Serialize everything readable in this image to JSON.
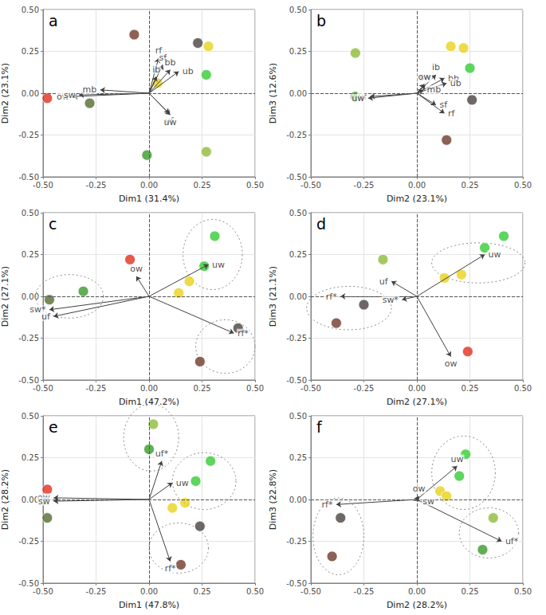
{
  "chart_data": [
    {
      "type": "scatter",
      "title": "a",
      "x_label": "Dim1 (31.4%)",
      "y_label": "Dim2 (23.1%)",
      "xlim": [
        -0.5,
        0.5
      ],
      "ylim": [
        -0.5,
        0.5
      ],
      "xticks": [
        {
          "value": -0.5,
          "label": "-0.50"
        },
        {
          "value": -0.25,
          "label": "-0.25"
        },
        {
          "value": 0,
          "label": "0.00"
        },
        {
          "value": 0.25,
          "label": "0.25"
        },
        {
          "value": 0.5,
          "label": "0.50"
        }
      ],
      "yticks": [
        {
          "value": -0.5,
          "label": "-0.50"
        },
        {
          "value": -0.25,
          "label": "-0.25"
        },
        {
          "value": 0,
          "label": "0.00"
        },
        {
          "value": 0.25,
          "label": "0.25"
        },
        {
          "value": 0.5,
          "label": "0.50"
        }
      ],
      "grid": true,
      "hline": 0,
      "vline": 0,
      "arrows": [
        {
          "name": "ow",
          "x": -0.36,
          "y": -0.02
        },
        {
          "name": "sw",
          "x": -0.33,
          "y": -0.01
        },
        {
          "name": "mb",
          "x": -0.23,
          "y": 0.02
        },
        {
          "name": "rf",
          "x": 0.045,
          "y": 0.21
        },
        {
          "name": "sf",
          "x": 0.065,
          "y": 0.17
        },
        {
          "name": "bb",
          "x": 0.1,
          "y": 0.14
        },
        {
          "name": "ub",
          "x": 0.14,
          "y": 0.13
        },
        {
          "name": "ib",
          "x": 0.035,
          "y": 0.1
        },
        {
          "name": "uf",
          "x": 0.095,
          "y": -0.12
        },
        {
          "name": "uw",
          "x": 0.1,
          "y": -0.13
        }
      ],
      "points": [
        {
          "x": -0.07,
          "y": 0.35,
          "color": "#6e3b2b"
        },
        {
          "x": 0.23,
          "y": 0.3,
          "color": "#4a4340"
        },
        {
          "x": 0.28,
          "y": 0.28,
          "color": "#e8d21d"
        },
        {
          "x": 0.04,
          "y": 0.06,
          "color": "#e8d21d"
        },
        {
          "x": 0.27,
          "y": 0.11,
          "color": "#33cc33"
        },
        {
          "x": -0.28,
          "y": -0.06,
          "color": "#556b2f"
        },
        {
          "x": -0.48,
          "y": -0.03,
          "color": "#e0301e"
        },
        {
          "x": -0.01,
          "y": -0.37,
          "color": "#3a9a2a"
        },
        {
          "x": 0.27,
          "y": -0.35,
          "color": "#8fbc3a"
        }
      ],
      "ellipses": []
    },
    {
      "type": "scatter",
      "title": "b",
      "x_label": "Dim2 (23.1%)",
      "y_label": "Dim3 (12.6%)",
      "xlim": [
        -0.5,
        0.5
      ],
      "ylim": [
        -0.5,
        0.5
      ],
      "xticks": [
        {
          "value": -0.5,
          "label": "-0.50"
        },
        {
          "value": -0.25,
          "label": "-0.25"
        },
        {
          "value": 0,
          "label": "0.00"
        },
        {
          "value": 0.25,
          "label": "0.25"
        },
        {
          "value": 0.5,
          "label": "0.50"
        }
      ],
      "yticks": [
        {
          "value": -0.5,
          "label": "-0.50"
        },
        {
          "value": -0.25,
          "label": "-0.25"
        },
        {
          "value": 0,
          "label": "0.00"
        },
        {
          "value": 0.25,
          "label": "0.25"
        },
        {
          "value": 0.5,
          "label": "0.50"
        }
      ],
      "grid": true,
      "hline": 0,
      "vline": 0,
      "arrows": [
        {
          "name": "ib",
          "x": 0.09,
          "y": 0.11
        },
        {
          "name": "bb",
          "x": 0.13,
          "y": 0.09
        },
        {
          "name": "ub",
          "x": 0.14,
          "y": 0.06
        },
        {
          "name": "sw",
          "x": 0.04,
          "y": 0.05
        },
        {
          "name": "ow",
          "x": 0.035,
          "y": 0.055
        },
        {
          "name": "mb",
          "x": 0.03,
          "y": 0.02
        },
        {
          "name": "uf",
          "x": -0.22,
          "y": -0.02
        },
        {
          "name": "uw",
          "x": -0.23,
          "y": -0.03
        },
        {
          "name": "sf",
          "x": 0.09,
          "y": -0.07
        },
        {
          "name": "rf",
          "x": 0.13,
          "y": -0.12
        }
      ],
      "points": [
        {
          "x": 0.16,
          "y": 0.28,
          "color": "#e8d21d"
        },
        {
          "x": 0.22,
          "y": 0.27,
          "color": "#e8d21d"
        },
        {
          "x": 0.25,
          "y": 0.15,
          "color": "#33cc33"
        },
        {
          "x": 0.26,
          "y": -0.04,
          "color": "#4a4340"
        },
        {
          "x": 0.14,
          "y": -0.28,
          "color": "#6e3b2b"
        },
        {
          "x": -0.29,
          "y": 0.24,
          "color": "#8fbc3a"
        },
        {
          "x": -0.29,
          "y": -0.02,
          "color": "#3a9a2a"
        }
      ],
      "ellipses": []
    },
    {
      "type": "scatter",
      "title": "c",
      "x_label": "Dim1 (47.2%)",
      "y_label": "Dim2 (27.1%)",
      "xlim": [
        -0.5,
        0.5
      ],
      "ylim": [
        -0.5,
        0.5
      ],
      "xticks": [
        {
          "value": -0.5,
          "label": "-0.50"
        },
        {
          "value": -0.25,
          "label": "-0.25"
        },
        {
          "value": 0,
          "label": "0.00"
        },
        {
          "value": 0.25,
          "label": "0.25"
        },
        {
          "value": 0.5,
          "label": "0.50"
        }
      ],
      "yticks": [
        {
          "value": -0.5,
          "label": "-0.50"
        },
        {
          "value": -0.25,
          "label": "-0.25"
        },
        {
          "value": 0,
          "label": "0.00"
        },
        {
          "value": 0.25,
          "label": "0.25"
        },
        {
          "value": 0.5,
          "label": "0.50"
        }
      ],
      "grid": true,
      "hline": 0,
      "vline": 0,
      "arrows": [
        {
          "name": "ow",
          "x": -0.06,
          "y": 0.12
        },
        {
          "name": "sw*",
          "x": -0.47,
          "y": -0.08
        },
        {
          "name": "uf",
          "x": -0.45,
          "y": -0.12
        },
        {
          "name": "uw",
          "x": 0.28,
          "y": 0.19
        },
        {
          "name": "rf*",
          "x": 0.4,
          "y": -0.22
        }
      ],
      "points": [
        {
          "x": -0.09,
          "y": 0.22,
          "color": "#e0301e"
        },
        {
          "x": -0.47,
          "y": -0.02,
          "color": "#556b2f"
        },
        {
          "x": -0.31,
          "y": 0.03,
          "color": "#3a9a2a"
        },
        {
          "x": 0.31,
          "y": 0.36,
          "color": "#33cc33"
        },
        {
          "x": 0.26,
          "y": 0.18,
          "color": "#33cc33"
        },
        {
          "x": 0.19,
          "y": 0.09,
          "color": "#e8d21d"
        },
        {
          "x": 0.14,
          "y": 0.02,
          "color": "#e8d21d"
        },
        {
          "x": 0.42,
          "y": -0.19,
          "color": "#4a4340"
        },
        {
          "x": 0.24,
          "y": -0.39,
          "color": "#6e3b2b"
        }
      ],
      "ellipses": [
        {
          "x": -0.375,
          "y": 0,
          "rx": 0.16,
          "ry": 0.13
        },
        {
          "x": 0.3,
          "y": 0.25,
          "rx": 0.14,
          "ry": 0.21
        },
        {
          "x": 0.36,
          "y": -0.3,
          "rx": 0.14,
          "ry": 0.16
        }
      ]
    },
    {
      "type": "scatter",
      "title": "d",
      "x_label": "Dim2 (27.1%)",
      "y_label": "Dim3 (21.1%)",
      "xlim": [
        -0.5,
        0.5
      ],
      "ylim": [
        -0.5,
        0.5
      ],
      "xticks": [
        {
          "value": -0.5,
          "label": "-0.50"
        },
        {
          "value": -0.25,
          "label": "-0.25"
        },
        {
          "value": 0,
          "label": "0.00"
        },
        {
          "value": 0.25,
          "label": "0.25"
        },
        {
          "value": 0.5,
          "label": "0.50"
        }
      ],
      "yticks": [
        {
          "value": -0.5,
          "label": "-0.50"
        },
        {
          "value": -0.25,
          "label": "-0.25"
        },
        {
          "value": 0,
          "label": "0.00"
        },
        {
          "value": 0.25,
          "label": "0.25"
        },
        {
          "value": 0.5,
          "label": "0.50"
        }
      ],
      "grid": true,
      "hline": 0,
      "vline": 0,
      "arrows": [
        {
          "name": "uf",
          "x": -0.12,
          "y": 0.09
        },
        {
          "name": "rf*",
          "x": -0.36,
          "y": 0.0
        },
        {
          "name": "sw*",
          "x": -0.07,
          "y": -0.02
        },
        {
          "name": "uw",
          "x": 0.32,
          "y": 0.25
        },
        {
          "name": "ow",
          "x": 0.16,
          "y": -0.36
        }
      ],
      "points": [
        {
          "x": -0.16,
          "y": 0.22,
          "color": "#8fbc3a"
        },
        {
          "x": -0.38,
          "y": -0.16,
          "color": "#6e3b2b"
        },
        {
          "x": -0.25,
          "y": -0.05,
          "color": "#4a4340"
        },
        {
          "x": 0.24,
          "y": -0.33,
          "color": "#e0301e"
        },
        {
          "x": 0.41,
          "y": 0.36,
          "color": "#33cc33"
        },
        {
          "x": 0.32,
          "y": 0.29,
          "color": "#33cc33"
        },
        {
          "x": 0.21,
          "y": 0.13,
          "color": "#e8d21d"
        },
        {
          "x": 0.13,
          "y": 0.11,
          "color": "#e8d21d"
        }
      ],
      "ellipses": [
        {
          "x": -0.32,
          "y": -0.07,
          "rx": 0.2,
          "ry": 0.13
        },
        {
          "x": 0.29,
          "y": 0.2,
          "rx": 0.22,
          "ry": 0.12
        }
      ]
    },
    {
      "type": "scatter",
      "title": "e",
      "x_label": "Dim1 (47.8%)",
      "y_label": "Dim2 (28.2%)",
      "xlim": [
        -0.5,
        0.5
      ],
      "ylim": [
        -0.5,
        0.5
      ],
      "xticks": [
        {
          "value": -0.5,
          "label": "-0.50"
        },
        {
          "value": -0.25,
          "label": "-0.25"
        },
        {
          "value": 0,
          "label": "0.00"
        },
        {
          "value": 0.25,
          "label": "0.25"
        },
        {
          "value": 0.5,
          "label": "0.50"
        }
      ],
      "yticks": [
        {
          "value": -0.5,
          "label": "-0.50"
        },
        {
          "value": -0.25,
          "label": "-0.25"
        },
        {
          "value": 0,
          "label": "0.00"
        },
        {
          "value": 0.25,
          "label": "0.25"
        },
        {
          "value": 0.5,
          "label": "0.50"
        }
      ],
      "grid": true,
      "hline": 0,
      "vline": 0,
      "arrows": [
        {
          "name": "ow",
          "x": -0.45,
          "y": 0.01
        },
        {
          "name": "sw",
          "x": -0.45,
          "y": -0.01
        },
        {
          "name": "uf*",
          "x": 0.06,
          "y": 0.23
        },
        {
          "name": "uw",
          "x": 0.11,
          "y": 0.1
        },
        {
          "name": "rf*",
          "x": 0.1,
          "y": -0.37
        }
      ],
      "points": [
        {
          "x": -0.48,
          "y": 0.06,
          "color": "#e0301e"
        },
        {
          "x": -0.48,
          "y": -0.11,
          "color": "#556b2f"
        },
        {
          "x": 0.02,
          "y": 0.45,
          "color": "#8fbc3a"
        },
        {
          "x": 0.0,
          "y": 0.3,
          "color": "#3a9a2a"
        },
        {
          "x": 0.29,
          "y": 0.23,
          "color": "#33cc33"
        },
        {
          "x": 0.22,
          "y": 0.11,
          "color": "#33cc33"
        },
        {
          "x": 0.11,
          "y": -0.05,
          "color": "#e8d21d"
        },
        {
          "x": 0.17,
          "y": -0.02,
          "color": "#e8d21d"
        },
        {
          "x": 0.24,
          "y": -0.16,
          "color": "#4a4340"
        },
        {
          "x": 0.15,
          "y": -0.39,
          "color": "#6e3b2b"
        }
      ],
      "ellipses": [
        {
          "x": 0.01,
          "y": 0.37,
          "rx": 0.13,
          "ry": 0.2
        },
        {
          "x": 0.26,
          "y": 0.11,
          "rx": 0.15,
          "ry": 0.17
        },
        {
          "x": 0.14,
          "y": -0.29,
          "rx": 0.14,
          "ry": 0.15
        }
      ]
    },
    {
      "type": "scatter",
      "title": "f",
      "x_label": "Dim2 (28.2%)",
      "y_label": "Dim3 (22.8%)",
      "xlim": [
        -0.5,
        0.5
      ],
      "ylim": [
        -0.5,
        0.5
      ],
      "xticks": [
        {
          "value": -0.5,
          "label": "-0.50"
        },
        {
          "value": -0.25,
          "label": "-0.25"
        },
        {
          "value": 0,
          "label": "0.00"
        },
        {
          "value": 0.25,
          "label": "0.25"
        },
        {
          "value": 0.5,
          "label": "0.50"
        }
      ],
      "yticks": [
        {
          "value": -0.5,
          "label": "-0.50"
        },
        {
          "value": -0.25,
          "label": "-0.25"
        },
        {
          "value": 0,
          "label": "0.00"
        },
        {
          "value": 0.25,
          "label": "0.25"
        },
        {
          "value": 0.5,
          "label": "0.50"
        }
      ],
      "grid": true,
      "hline": 0,
      "vline": 0,
      "arrows": [
        {
          "name": "uw",
          "x": 0.19,
          "y": 0.2
        },
        {
          "name": "ow",
          "x": 0.01,
          "y": 0.02
        },
        {
          "name": "sw",
          "x": 0.01,
          "y": -0.01
        },
        {
          "name": "rf*",
          "x": -0.38,
          "y": -0.03
        },
        {
          "name": "uf*",
          "x": 0.4,
          "y": -0.25
        }
      ],
      "points": [
        {
          "x": -0.36,
          "y": -0.11,
          "color": "#4a4340"
        },
        {
          "x": -0.4,
          "y": -0.34,
          "color": "#6e3b2b"
        },
        {
          "x": 0.23,
          "y": 0.27,
          "color": "#33cc33"
        },
        {
          "x": 0.2,
          "y": 0.14,
          "color": "#33cc33"
        },
        {
          "x": 0.11,
          "y": 0.05,
          "color": "#e8d21d"
        },
        {
          "x": 0.14,
          "y": 0.02,
          "color": "#e8d21d"
        },
        {
          "x": 0.36,
          "y": -0.11,
          "color": "#8fbc3a"
        },
        {
          "x": 0.31,
          "y": -0.3,
          "color": "#3a9a2a"
        }
      ],
      "ellipses": [
        {
          "x": -0.37,
          "y": -0.22,
          "rx": 0.12,
          "ry": 0.23
        },
        {
          "x": 0.22,
          "y": 0.16,
          "rx": 0.15,
          "ry": 0.22
        },
        {
          "x": 0.34,
          "y": -0.2,
          "rx": 0.14,
          "ry": 0.15
        }
      ]
    }
  ]
}
